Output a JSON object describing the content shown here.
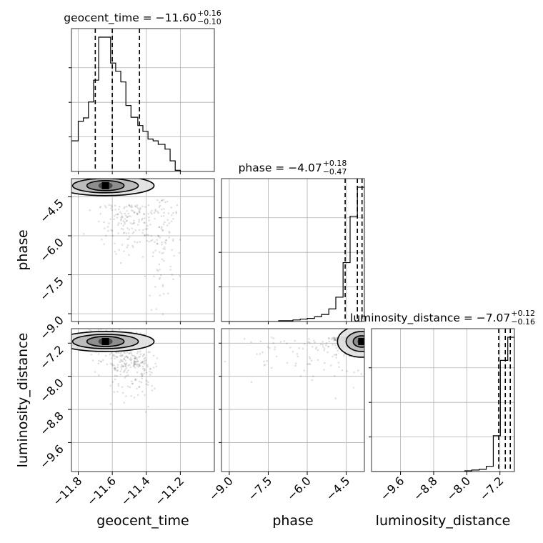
{
  "chart_data": {
    "type": "corner",
    "parameters": [
      "geocent_time",
      "phase",
      "luminosity_distance"
    ],
    "titles": {
      "geocent_time": {
        "prefix": "geocent_time = −11.60",
        "plus": "+0.16",
        "minus": "−0.10"
      },
      "phase": {
        "prefix": "phase = −4.07",
        "plus": "+0.18",
        "minus": "−0.47"
      },
      "luminosity_distance": {
        "prefix": "luminosity_distance = −7.07",
        "plus": "+0.12",
        "minus": "−0.16"
      }
    },
    "axis_labels": {
      "geocent_time": "geocent_time",
      "phase": "phase",
      "luminosity_distance": "luminosity_distance"
    },
    "ranges": {
      "geocent_time": [
        -11.84,
        -11.0
      ],
      "phase": [
        -9.3,
        -3.8
      ],
      "luminosity_distance": [
        -10.3,
        -6.85
      ]
    },
    "ticks": {
      "geocent_time": [
        -11.8,
        -11.6,
        -11.4,
        -11.2
      ],
      "phase": [
        -9.0,
        -7.5,
        -6.0,
        -4.5
      ],
      "luminosity_distance": [
        -9.6,
        -8.8,
        -8.0,
        -7.2
      ]
    },
    "tick_labels": {
      "geocent_time": [
        "−11.8",
        "−11.6",
        "−11.4",
        "−11.2"
      ],
      "phase": [
        "−9.0",
        "−7.5",
        "−6.0",
        "−4.5"
      ],
      "luminosity_distance": [
        "−9.6",
        "−8.8",
        "−8.0",
        "−7.2"
      ]
    },
    "quantiles": {
      "geocent_time": [
        -11.7,
        -11.6,
        -11.44
      ],
      "phase": [
        -4.54,
        -4.07,
        -3.89
      ],
      "luminosity_distance": [
        -7.23,
        -7.07,
        -6.95
      ]
    },
    "histograms": {
      "geocent_time": {
        "edges": [
          -11.84,
          -11.8,
          -11.77,
          -11.74,
          -11.71,
          -11.68,
          -11.65,
          -11.61,
          -11.58,
          -11.55,
          -11.52,
          -11.49,
          -11.45,
          -11.42,
          -11.39,
          -11.36,
          -11.33,
          -11.29,
          -11.26,
          -11.23,
          -11.2
        ],
        "counts": [
          52,
          85,
          91,
          118,
          155,
          228,
          228,
          184,
          170,
          152,
          112,
          92,
          78,
          68,
          55,
          52,
          46,
          38,
          18,
          2
        ]
      },
      "phase": {
        "edges": [
          -9.3,
          -9.02,
          -8.75,
          -8.47,
          -8.2,
          -7.92,
          -7.65,
          -7.37,
          -7.1,
          -6.82,
          -6.55,
          -6.27,
          -6.0,
          -5.72,
          -5.45,
          -5.17,
          -4.9,
          -4.62,
          -4.35,
          -4.07,
          -3.8
        ],
        "counts": [
          0,
          0,
          0,
          0,
          0,
          0,
          0,
          0,
          1,
          1,
          2,
          3,
          4,
          6,
          9,
          16,
          31,
          75,
          134,
          171
        ]
      },
      "luminosity_distance": {
        "edges": [
          -10.3,
          -10.13,
          -9.95,
          -9.78,
          -9.6,
          -9.43,
          -9.26,
          -9.09,
          -8.91,
          -8.74,
          -8.57,
          -8.39,
          -8.22,
          -8.05,
          -7.88,
          -7.7,
          -7.53,
          -7.36,
          -7.19,
          -7.01,
          -6.85
        ],
        "counts": [
          0,
          0,
          0,
          0,
          0,
          0,
          0,
          0,
          0,
          0,
          0,
          0,
          0,
          1,
          2,
          3,
          7,
          48,
          149,
          180
        ]
      }
    },
    "contour_peaks": {
      "geocent_time-phase": [
        -11.64,
        -4.07
      ],
      "geocent_time-luminosity_distance": [
        -11.64,
        -7.16
      ],
      "phase-luminosity_distance": [
        -3.9,
        -7.16
      ]
    },
    "grid": true
  }
}
